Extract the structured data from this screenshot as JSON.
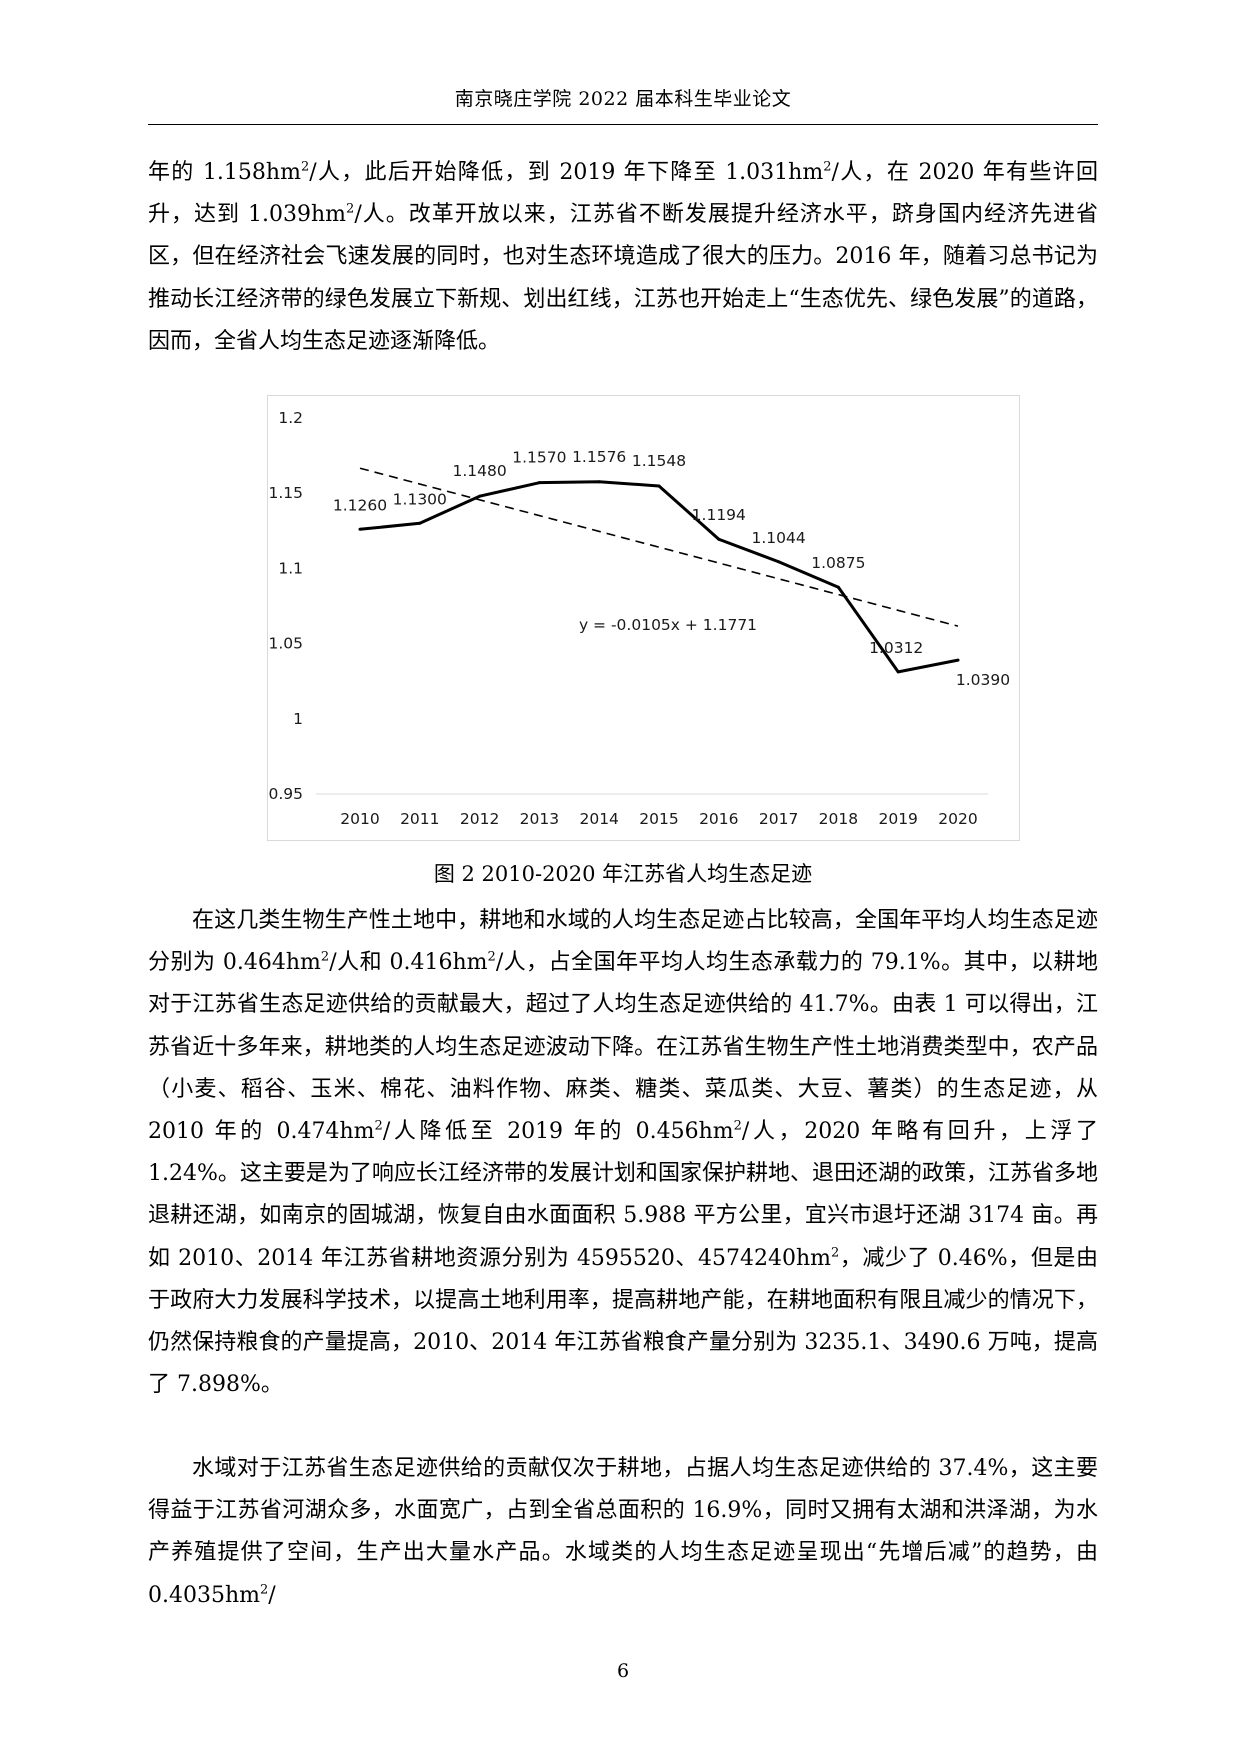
{
  "header": {
    "title": "南京晓庄学院 2022 届本科生毕业论文"
  },
  "paragraphs": {
    "p1": "年的 1.158hm²/人，此后开始降低，到 2019 年下降至 1.031hm²/人，在 2020 年有些许回升，达到 1.039hm²/人。改革开放以来，江苏省不断发展提升经济水平，跻身国内经济先进省区，但在经济社会飞速发展的同时，也对生态环境造成了很大的压力。2016 年，随着习总书记为推动长江经济带的绿色发展立下新规、划出红线，江苏也开始走上“生态优先、绿色发展”的道路，因而，全省人均生态足迹逐渐降低。",
    "p2": "在这几类生物生产性土地中，耕地和水域的人均生态足迹占比较高，全国年平均人均生态足迹分别为 0.464hm²/人和 0.416hm²/人，占全国年平均人均生态承载力的 79.1%。其中，以耕地对于江苏省生态足迹供给的贡献最大，超过了人均生态足迹供给的 41.7%。由表 1 可以得出，江苏省近十多年来，耕地类的人均生态足迹波动下降。在江苏省生物生产性土地消费类型中，农产品（小麦、稻谷、玉米、棉花、油料作物、麻类、糖类、菜瓜类、大豆、薯类）的生态足迹，从 2010 年的 0.474hm²/人降低至 2019 年的 0.456hm²/人，2020 年略有回升，上浮了 1.24%。这主要是为了响应长江经济带的发展计划和国家保护耕地、退田还湖的政策，江苏省多地退耕还湖，如南京的固城湖，恢复自由水面面积 5.988 平方公里，宜兴市退圩还湖 3174 亩。再如 2010、2014 年江苏省耕地资源分别为 4595520、4574240hm²，减少了 0.46%，但是由于政府大力发展科学技术，以提高土地利用率，提高耕地产能，在耕地面积有限且减少的情况下，仍然保持粮食的产量提高，2010、2014 年江苏省粮食产量分别为 3235.1、3490.6 万吨，提高了 7.898%。",
    "p3": "水域对于江苏省生态足迹供给的贡献仅次于耕地，占据人均生态足迹供给的 37.4%，这主要得益于江苏省河湖众多，水面宽广，占到全省总面积的 16.9%，同时又拥有太湖和洪泽湖，为水产养殖提供了空间，生产出大量水产品。水域类的人均生态足迹呈现出“先增后减”的趋势，由 0.4035hm²/"
  },
  "figure": {
    "caption": "图 2 2010-2020 年江苏省人均生态足迹"
  },
  "chart_data": {
    "type": "line",
    "title": "",
    "xlabel": "",
    "ylabel": "",
    "categories": [
      "2010",
      "2011",
      "2012",
      "2013",
      "2014",
      "2015",
      "2016",
      "2017",
      "2018",
      "2019",
      "2020"
    ],
    "series": [
      {
        "values": [
          1.126,
          1.13,
          1.148,
          1.157,
          1.1576,
          1.1548,
          1.1194,
          1.1044,
          1.0875,
          1.0312,
          1.039
        ],
        "labels": [
          "1.1260",
          "1.1300",
          "1.1480",
          "1.1570",
          "1.1576",
          "1.1548",
          "1.1194",
          "1.1044",
          "1.0875",
          "1.0312",
          "1.0390"
        ]
      }
    ],
    "trendline": {
      "slope": -0.0105,
      "intercept": 1.1771,
      "label": "y = -0.0105x + 1.1771",
      "style": "dashed"
    },
    "ylim": [
      0.95,
      1.2
    ],
    "yticks": [
      "0.95",
      "1",
      "1.05",
      "1.1",
      "1.15",
      "1.2"
    ],
    "grid": false,
    "legend": "none"
  },
  "page": {
    "number": "6"
  }
}
